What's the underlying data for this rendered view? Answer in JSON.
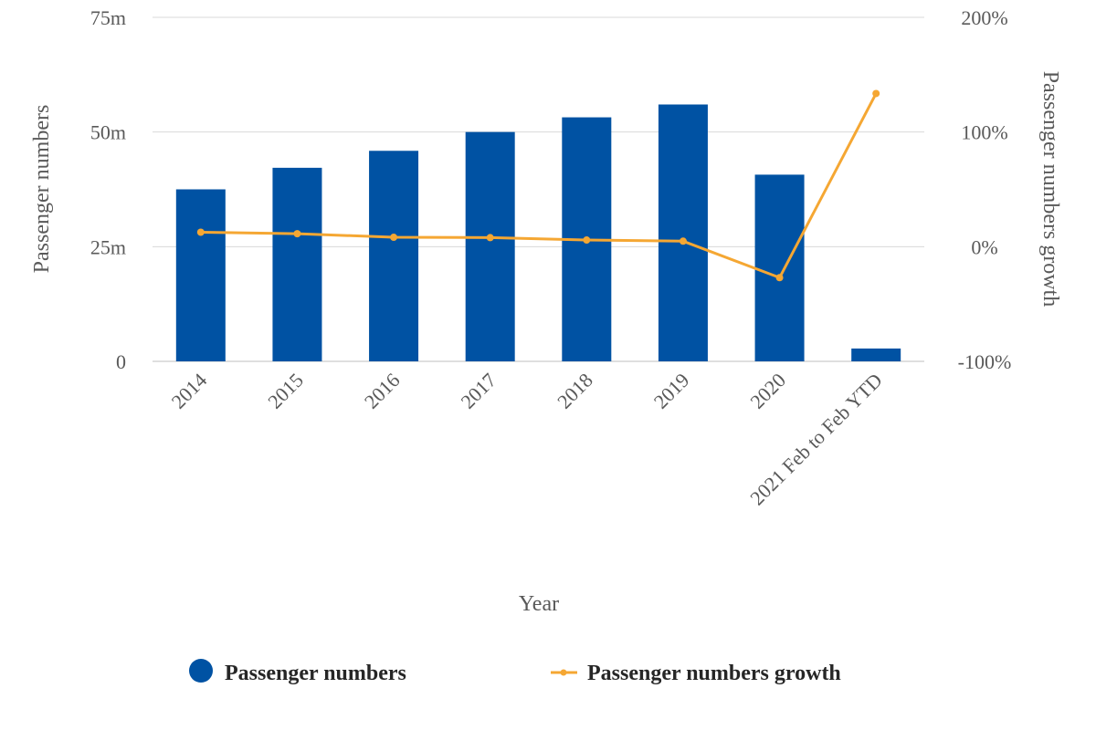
{
  "chart_data": {
    "type": "bar",
    "categories": [
      "2014",
      "2015",
      "2016",
      "2017",
      "2018",
      "2019",
      "2020",
      "2021 Feb to Feb YTD"
    ],
    "series": [
      {
        "name": "Passenger numbers",
        "kind": "bar",
        "axis": "left",
        "color": "#0052A3",
        "values": [
          37.5,
          42.2,
          45.9,
          50.0,
          53.2,
          56.0,
          40.7,
          2.8
        ]
      },
      {
        "name": "Passenger numbers growth",
        "kind": "line",
        "axis": "right",
        "color": "#F5A733",
        "values": [
          12.6,
          11.3,
          8.2,
          7.9,
          5.8,
          4.8,
          -27.0,
          133.6
        ]
      }
    ],
    "xlabel": "Year",
    "ylabel": "Passenger numbers",
    "y2label": "Passenger numbers growth",
    "ylim": [
      0,
      75
    ],
    "y2lim": [
      -100,
      200
    ],
    "yticks": [
      "0",
      "25m",
      "50m",
      "75m"
    ],
    "y2ticks": [
      "-100%",
      "0%",
      "100%",
      "200%"
    ],
    "grid": true,
    "legend_position": "bottom"
  }
}
